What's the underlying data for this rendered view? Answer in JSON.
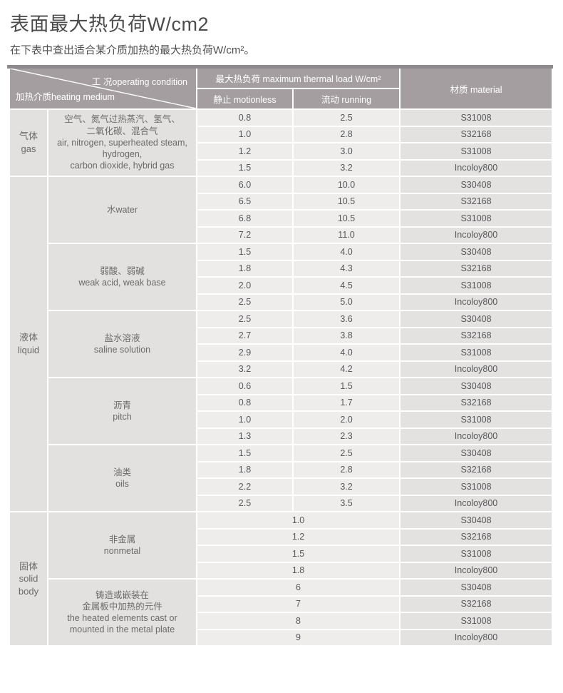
{
  "page": {
    "title": "表面最大热负荷W/cm2",
    "subtitle": "在下表中查出适合某介质加热的最大热负荷W/cm²。"
  },
  "colors": {
    "header_bg": "#a49ea1",
    "top_bar": "#8d898c",
    "label_cell_bg": "#e3e1e0",
    "value_cell_bg": "#eeedec",
    "material_cell_bg": "#e4e2e1"
  },
  "table": {
    "header": {
      "operating_condition": "工 况operating condition",
      "heating_medium": "加热介质heating medium",
      "thermal_load": "最大热负荷 maximum thermal load W/cm²",
      "motionless": "静止 motionless",
      "running": "流动 running",
      "material": "材质 material"
    },
    "groups": [
      {
        "category_lines": [
          "气体",
          "gas"
        ],
        "media": [
          {
            "label_lines": [
              "空气、氮气过热蒸汽、氢气、",
              "二氧化碳、混合气",
              "air, nitrogen, superheated steam,",
              "hydrogen,",
              "carbon dioxide, hybrid gas"
            ],
            "rows": [
              {
                "motionless": "0.8",
                "running": "2.5",
                "material": "S31008"
              },
              {
                "motionless": "1.0",
                "running": "2.8",
                "material": "S32168"
              },
              {
                "motionless": "1.2",
                "running": "3.0",
                "material": "S31008"
              },
              {
                "motionless": "1.5",
                "running": "3.2",
                "material": "Incoloy800"
              }
            ]
          }
        ]
      },
      {
        "category_lines": [
          "液体",
          "liquid"
        ],
        "media": [
          {
            "label_lines": [
              "水water"
            ],
            "rows": [
              {
                "motionless": "6.0",
                "running": "10.0",
                "material": "S30408"
              },
              {
                "motionless": "6.5",
                "running": "10.5",
                "material": "S32168"
              },
              {
                "motionless": "6.8",
                "running": "10.5",
                "material": "S31008"
              },
              {
                "motionless": "7.2",
                "running": "11.0",
                "material": "Incoloy800"
              }
            ]
          },
          {
            "label_lines": [
              "弱酸、弱碱",
              "weak acid, weak base"
            ],
            "rows": [
              {
                "motionless": "1.5",
                "running": "4.0",
                "material": "S30408"
              },
              {
                "motionless": "1.8",
                "running": "4.3",
                "material": "S32168"
              },
              {
                "motionless": "2.0",
                "running": "4.5",
                "material": "S31008"
              },
              {
                "motionless": "2.5",
                "running": "5.0",
                "material": "Incoloy800"
              }
            ]
          },
          {
            "label_lines": [
              "盐水溶液",
              "saline solution"
            ],
            "rows": [
              {
                "motionless": "2.5",
                "running": "3.6",
                "material": "S30408"
              },
              {
                "motionless": "2.7",
                "running": "3.8",
                "material": "S32168"
              },
              {
                "motionless": "2.9",
                "running": "4.0",
                "material": "S31008"
              },
              {
                "motionless": "3.2",
                "running": "4.2",
                "material": "Incoloy800"
              }
            ]
          },
          {
            "label_lines": [
              "沥青",
              "pitch"
            ],
            "rows": [
              {
                "motionless": "0.6",
                "running": "1.5",
                "material": "S30408"
              },
              {
                "motionless": "0.8",
                "running": "1.7",
                "material": "S32168"
              },
              {
                "motionless": "1.0",
                "running": "2.0",
                "material": "S31008"
              },
              {
                "motionless": "1.3",
                "running": "2.3",
                "material": "Incoloy800"
              }
            ]
          },
          {
            "label_lines": [
              "油类",
              "oils"
            ],
            "rows": [
              {
                "motionless": "1.5",
                "running": "2.5",
                "material": "S30408"
              },
              {
                "motionless": "1.8",
                "running": "2.8",
                "material": "S32168"
              },
              {
                "motionless": "2.2",
                "running": "3.2",
                "material": "S31008"
              },
              {
                "motionless": "2.5",
                "running": "3.5",
                "material": "Incoloy800"
              }
            ]
          }
        ]
      },
      {
        "category_lines": [
          "固体",
          "solid",
          "body"
        ],
        "media": [
          {
            "label_lines": [
              "非金属",
              "nonmetal"
            ],
            "rows": [
              {
                "value": "1.0",
                "material": "S30408"
              },
              {
                "value": "1.2",
                "material": "S32168"
              },
              {
                "value": "1.5",
                "material": "S31008"
              },
              {
                "value": "1.8",
                "material": "Incoloy800"
              }
            ]
          },
          {
            "label_lines": [
              "铸造或嵌装在",
              "金属板中加热的元件",
              "the heated elements cast or",
              "mounted in the metal plate"
            ],
            "rows": [
              {
                "value": "6",
                "material": "S30408"
              },
              {
                "value": "7",
                "material": "S32168"
              },
              {
                "value": "8",
                "material": "S31008"
              },
              {
                "value": "9",
                "material": "Incoloy800"
              }
            ]
          }
        ]
      }
    ]
  }
}
